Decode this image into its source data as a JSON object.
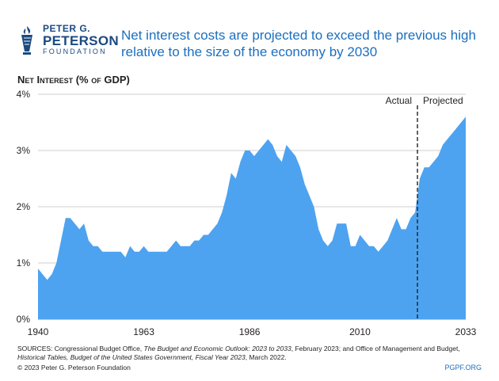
{
  "header": {
    "logo_line1": "PETER G.",
    "logo_line2": "PETERSON",
    "logo_line3": "FOUNDATION",
    "title": "Net interest costs are projected to exceed the previous high relative to the size of the economy by 2030"
  },
  "footer": {
    "sources_parts": [
      {
        "text": "SOURCES: Congressional Budget Office, ",
        "italic": false
      },
      {
        "text": "The Budget and Economic Outlook: 2023 to 2033",
        "italic": true
      },
      {
        "text": ", February 2023; and Office of Management and Budget, ",
        "italic": false
      },
      {
        "text": "Historical Tables, Budget of the United States Government, Fiscal Year 2023",
        "italic": true
      },
      {
        "text": ", March 2022.",
        "italic": false
      }
    ],
    "copyright": "© 2023 Peter G. Peterson Foundation",
    "site": "PGPF.ORG"
  },
  "colors": {
    "brand": "#1b4a82",
    "title": "#1b6fbf",
    "area": "#4da3f0"
  },
  "chart_data": {
    "type": "area",
    "ylabel": "Net Interest (% of GDP)",
    "xlabel": "",
    "xlim": [
      1940,
      2033
    ],
    "ylim": [
      0,
      4
    ],
    "x_ticks": [
      1940,
      1963,
      1986,
      2010,
      2033
    ],
    "y_ticks": [
      {
        "value": 0,
        "label": "0%"
      },
      {
        "value": 1,
        "label": "1%"
      },
      {
        "value": 2,
        "label": "2%"
      },
      {
        "value": 3,
        "label": "3%"
      },
      {
        "value": 4,
        "label": "4%"
      }
    ],
    "divider_year": 2022.5,
    "annotations": {
      "actual": "Actual",
      "projected": "Projected"
    },
    "x": [
      1940,
      1941,
      1942,
      1943,
      1944,
      1945,
      1946,
      1947,
      1948,
      1949,
      1950,
      1951,
      1952,
      1953,
      1954,
      1955,
      1956,
      1957,
      1958,
      1959,
      1960,
      1961,
      1962,
      1963,
      1964,
      1965,
      1966,
      1967,
      1968,
      1969,
      1970,
      1971,
      1972,
      1973,
      1974,
      1975,
      1976,
      1977,
      1978,
      1979,
      1980,
      1981,
      1982,
      1983,
      1984,
      1985,
      1986,
      1987,
      1988,
      1989,
      1990,
      1991,
      1992,
      1993,
      1994,
      1995,
      1996,
      1997,
      1998,
      1999,
      2000,
      2001,
      2002,
      2003,
      2004,
      2005,
      2006,
      2007,
      2008,
      2009,
      2010,
      2011,
      2012,
      2013,
      2014,
      2015,
      2016,
      2017,
      2018,
      2019,
      2020,
      2021,
      2022,
      2023,
      2024,
      2025,
      2026,
      2027,
      2028,
      2029,
      2030,
      2031,
      2032,
      2033
    ],
    "values": [
      0.9,
      0.8,
      0.7,
      0.8,
      1.0,
      1.4,
      1.8,
      1.8,
      1.7,
      1.6,
      1.7,
      1.4,
      1.3,
      1.3,
      1.2,
      1.2,
      1.2,
      1.2,
      1.2,
      1.1,
      1.3,
      1.2,
      1.2,
      1.3,
      1.2,
      1.2,
      1.2,
      1.2,
      1.2,
      1.3,
      1.4,
      1.3,
      1.3,
      1.3,
      1.4,
      1.4,
      1.5,
      1.5,
      1.6,
      1.7,
      1.9,
      2.2,
      2.6,
      2.5,
      2.8,
      3.0,
      3.0,
      2.9,
      3.0,
      3.1,
      3.2,
      3.1,
      2.9,
      2.8,
      3.1,
      3.0,
      2.9,
      2.7,
      2.4,
      2.2,
      2.0,
      1.6,
      1.4,
      1.3,
      1.4,
      1.7,
      1.7,
      1.7,
      1.3,
      1.3,
      1.5,
      1.4,
      1.3,
      1.3,
      1.2,
      1.3,
      1.4,
      1.6,
      1.8,
      1.6,
      1.6,
      1.8,
      1.9,
      2.5,
      2.7,
      2.7,
      2.8,
      2.9,
      3.1,
      3.2,
      3.3,
      3.4,
      3.5,
      3.6
    ]
  }
}
